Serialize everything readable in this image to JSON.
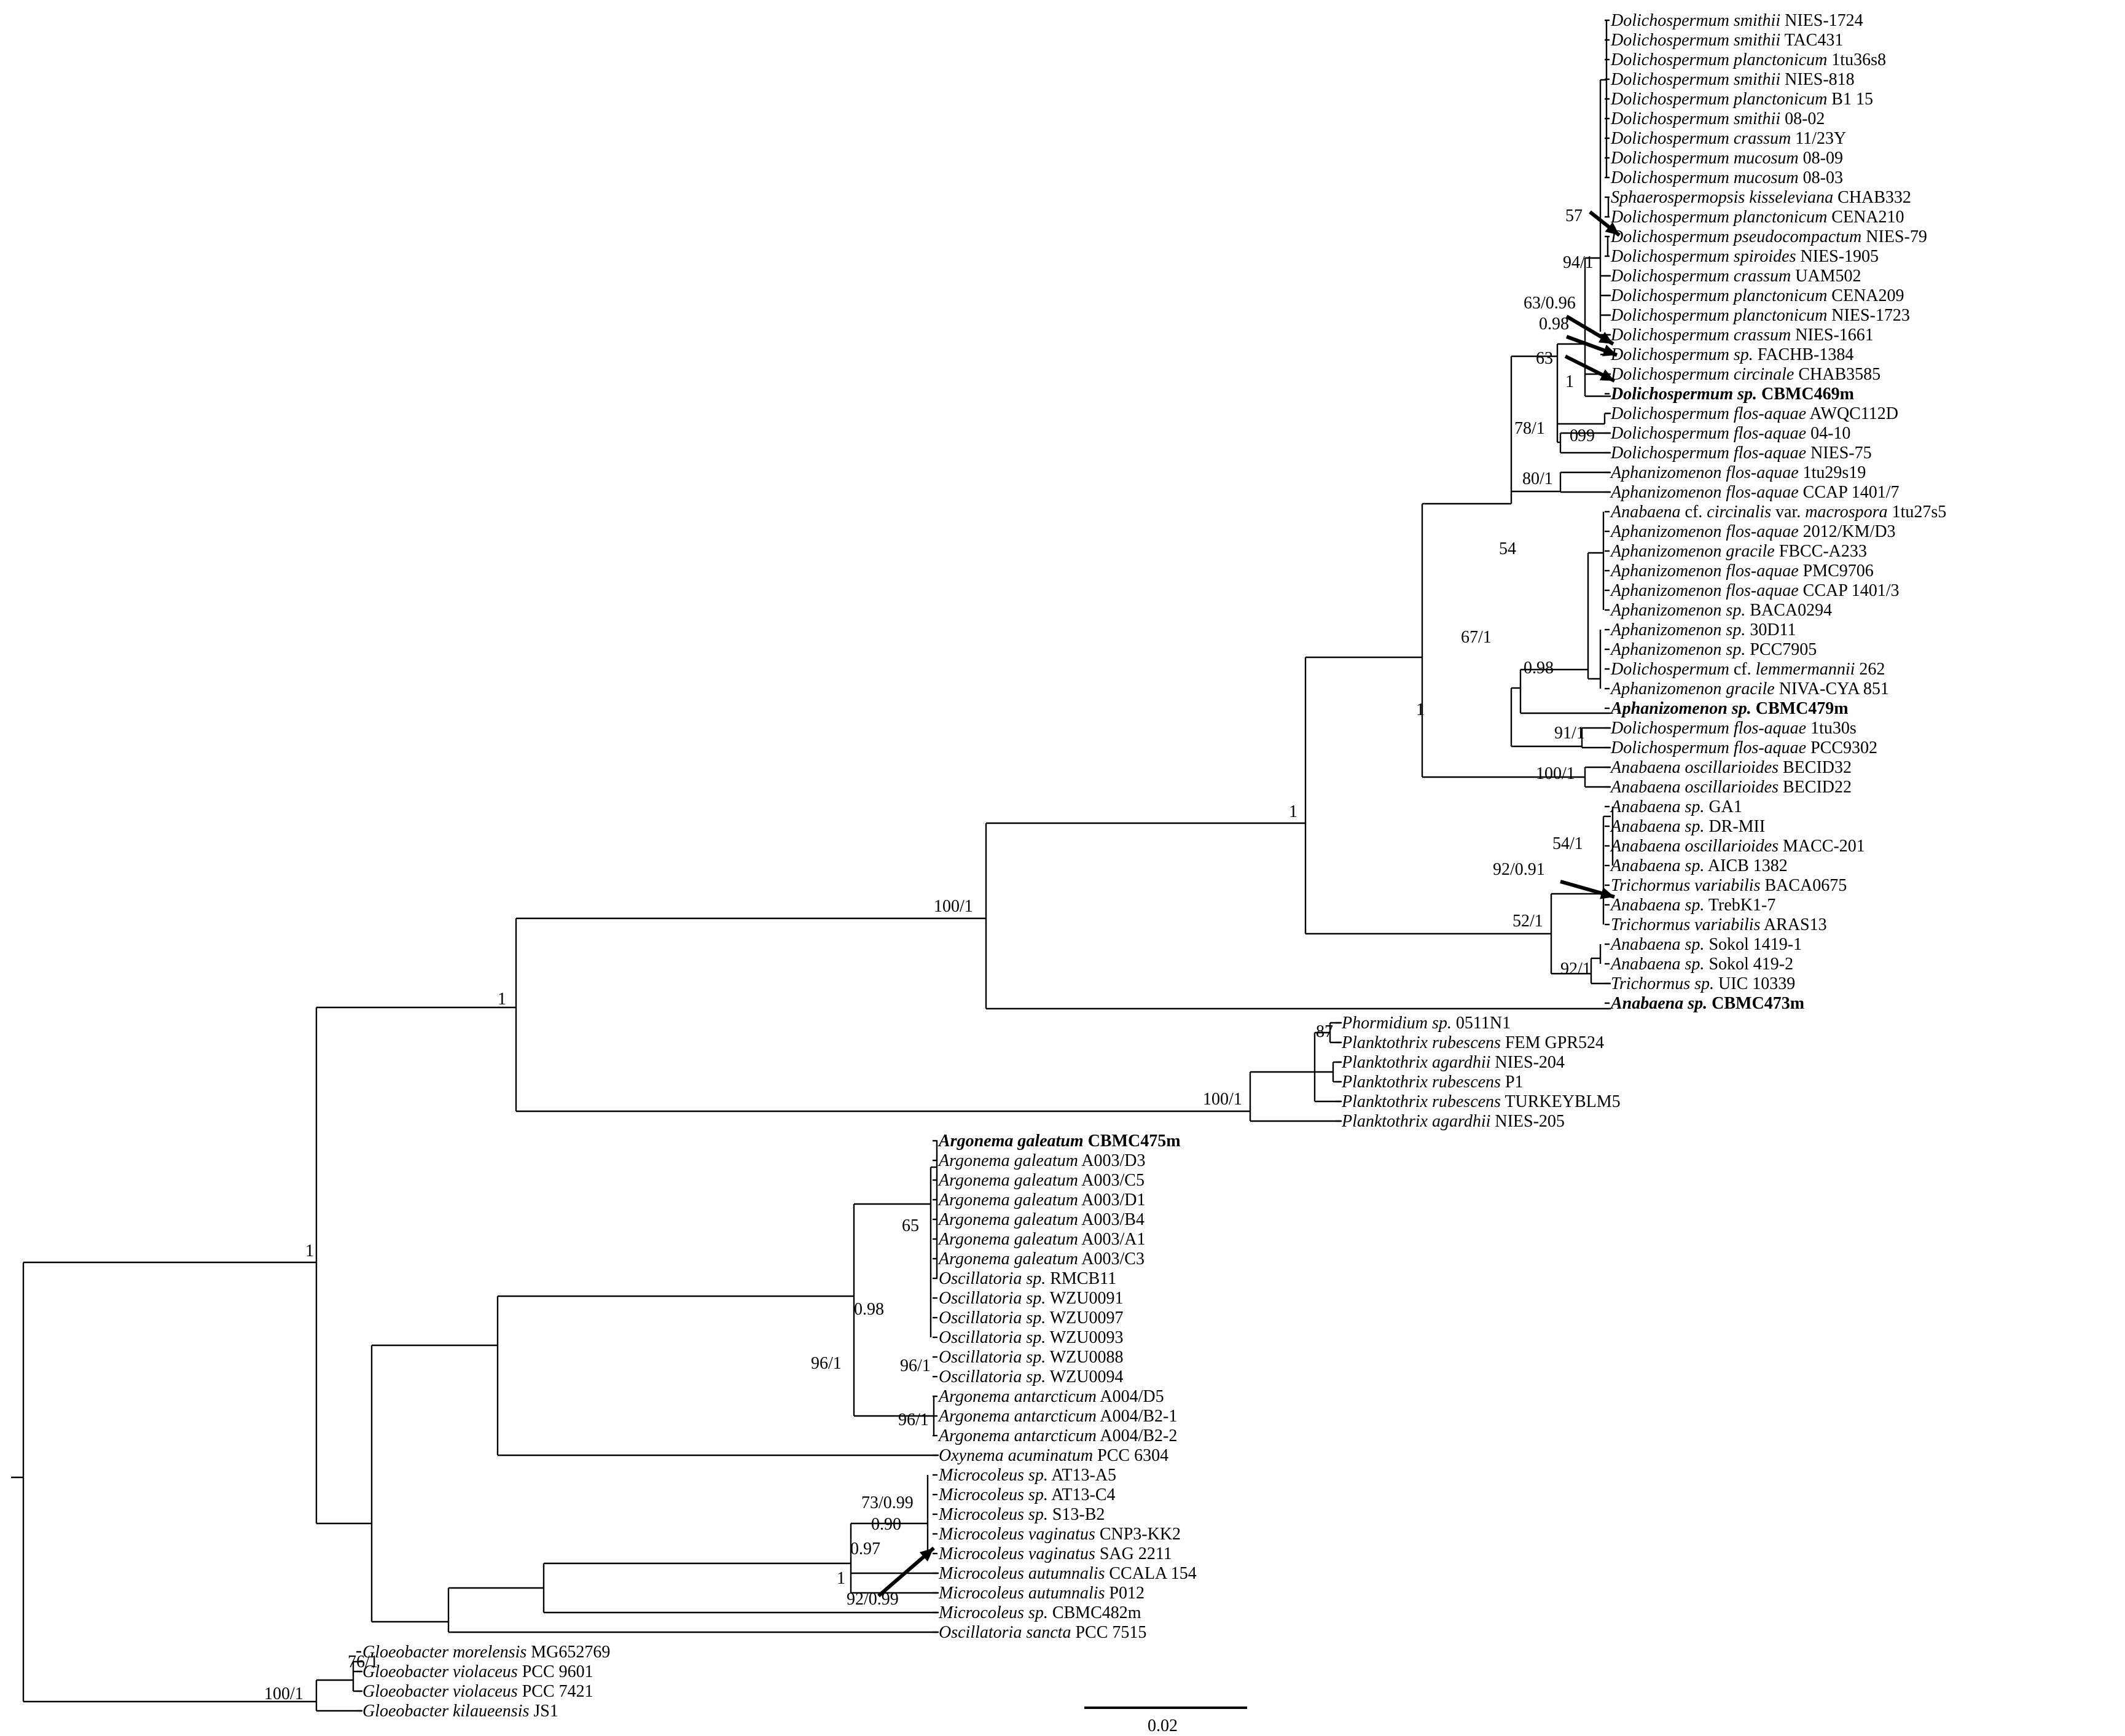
{
  "figure": {
    "scale_bar_label": "0.02"
  },
  "taxa": [
    {
      "id": "t1",
      "genus_species": "Dolichospermum smithii",
      "strain": "NIES-1724"
    },
    {
      "id": "t2",
      "genus_species": "Dolichospermum smithii",
      "strain": "TAC431"
    },
    {
      "id": "t3",
      "genus_species": "Dolichospermum planctonicum",
      "strain": "1tu36s8"
    },
    {
      "id": "t4",
      "genus_species": "Dolichospermum smithii",
      "strain": "NIES-818"
    },
    {
      "id": "t5",
      "genus_species": "Dolichospermum planctonicum",
      "strain": "B1 15"
    },
    {
      "id": "t6",
      "genus_species": "Dolichospermum smithii",
      "strain": "08-02"
    },
    {
      "id": "t7",
      "genus_species": "Dolichospermum crassum",
      "strain": "11/23Y"
    },
    {
      "id": "t8",
      "genus_species": "Dolichospermum mucosum",
      "strain": "08-09"
    },
    {
      "id": "t9",
      "genus_species": "Dolichospermum mucosum",
      "strain": "08-03"
    },
    {
      "id": "t10",
      "genus_species": "Sphaerospermopsis kisseleviana",
      "strain": "CHAB332"
    },
    {
      "id": "t11",
      "genus_species": "Dolichospermum planctonicum",
      "strain": "CENA210"
    },
    {
      "id": "t12",
      "genus_species": "Dolichospermum pseudocompactum",
      "strain": "NIES-79"
    },
    {
      "id": "t13",
      "genus_species": "Dolichospermum spiroides",
      "strain": "NIES-1905"
    },
    {
      "id": "t14",
      "genus_species": "Dolichospermum crassum",
      "strain": "UAM502"
    },
    {
      "id": "t15",
      "genus_species": "Dolichospermum planctonicum",
      "strain": "CENA209"
    },
    {
      "id": "t16",
      "genus_species": "Dolichospermum planctonicum",
      "strain": "NIES-1723"
    },
    {
      "id": "t17",
      "genus_species": "Dolichospermum crassum",
      "strain": "NIES-1661"
    },
    {
      "id": "t18",
      "genus_species": "Dolichospermum sp.",
      "strain": "FACHB-1384"
    },
    {
      "id": "t19",
      "genus_species": "Dolichospermum circinale",
      "strain": "CHAB3585"
    },
    {
      "id": "t20",
      "genus_species": "Dolichospermum sp.",
      "strain": "CBMC469m",
      "highlight": true
    },
    {
      "id": "t21",
      "genus_species": "Dolichospermum flos-aquae",
      "strain": "AWQC112D"
    },
    {
      "id": "t22",
      "genus_species": "Dolichospermum flos-aquae",
      "strain": "04-10"
    },
    {
      "id": "t23",
      "genus_species": "Dolichospermum flos-aquae",
      "strain": "NIES-75"
    },
    {
      "id": "t24",
      "genus_species": "Aphanizomenon flos-aquae",
      "strain": "1tu29s19"
    },
    {
      "id": "t25",
      "genus_species": "Aphanizomenon flos-aquae",
      "strain": "CCAP 1401/7"
    },
    {
      "id": "t26",
      "genus_species": "Anabaena",
      "strain": "cf.",
      "extra_italic": "circinalis",
      "extra_plain": "var.",
      "extra_italic2": "macrospora",
      "extra_strain": "1tu27s5"
    },
    {
      "id": "t27",
      "genus_species": "Aphanizomenon flos-aquae",
      "strain": "2012/KM/D3"
    },
    {
      "id": "t28",
      "genus_species": "Aphanizomenon gracile",
      "strain": "FBCC-A233"
    },
    {
      "id": "t29",
      "genus_species": "Aphanizomenon flos-aquae",
      "strain": "PMC9706"
    },
    {
      "id": "t30",
      "genus_species": "Aphanizomenon flos-aquae",
      "strain": "CCAP 1401/3"
    },
    {
      "id": "t31",
      "genus_species": "Aphanizomenon sp.",
      "strain": "BACA0294"
    },
    {
      "id": "t32",
      "genus_species": "Aphanizomenon sp.",
      "strain": "30D11"
    },
    {
      "id": "t33",
      "genus_species": "Aphanizomenon sp.",
      "strain": "PCC7905"
    },
    {
      "id": "t34",
      "genus_species": "Dolichospermum",
      "strain": "cf.",
      "extra_italic": "lemmermannii",
      "extra_strain": "262"
    },
    {
      "id": "t35",
      "genus_species": "Aphanizomenon gracile",
      "strain": "NIVA-CYA 851"
    },
    {
      "id": "t36",
      "genus_species": "Aphanizomenon sp.",
      "strain": "CBMC479m",
      "highlight": true
    },
    {
      "id": "t37",
      "genus_species": "Dolichospermum flos-aquae",
      "strain": "1tu30s"
    },
    {
      "id": "t38",
      "genus_species": "Dolichospermum flos-aquae",
      "strain": "PCC9302"
    },
    {
      "id": "t39",
      "genus_species": "Anabaena oscillarioides",
      "strain": "BECID32"
    },
    {
      "id": "t40",
      "genus_species": "Anabaena oscillarioides",
      "strain": "BECID22"
    },
    {
      "id": "t41",
      "genus_species": "Anabaena sp.",
      "strain": "GA1"
    },
    {
      "id": "t42",
      "genus_species": "Anabaena sp.",
      "strain": "DR-MII"
    },
    {
      "id": "t43",
      "genus_species": "Anabaena oscillarioides",
      "strain": "MACC-201"
    },
    {
      "id": "t44",
      "genus_species": "Anabaena sp.",
      "strain": "AICB 1382"
    },
    {
      "id": "t45",
      "genus_species": "Trichormus variabilis",
      "strain": "BACA0675"
    },
    {
      "id": "t46",
      "genus_species": "Anabaena sp.",
      "strain": "TrebK1-7"
    },
    {
      "id": "t47",
      "genus_species": "Trichormus variabilis",
      "strain": "ARAS13"
    },
    {
      "id": "t48",
      "genus_species": "Anabaena sp.",
      "strain": "Sokol 1419-1"
    },
    {
      "id": "t49",
      "genus_species": "Anabaena sp.",
      "strain": "Sokol 419-2"
    },
    {
      "id": "t50",
      "genus_species": "Trichormus sp.",
      "strain": "UIC 10339"
    },
    {
      "id": "t51",
      "genus_species": "Anabaena sp.",
      "strain": "CBMC473m",
      "highlight": true
    },
    {
      "id": "t52",
      "genus_species": "Phormidium sp.",
      "strain": "0511N1"
    },
    {
      "id": "t53",
      "genus_species": "Planktothrix rubescens",
      "strain": "FEM GPR524"
    },
    {
      "id": "t54",
      "genus_species": "Planktothrix agardhii",
      "strain": "NIES-204"
    },
    {
      "id": "t55",
      "genus_species": "Planktothrix rubescens",
      "strain": "P1"
    },
    {
      "id": "t56",
      "genus_species": "Planktothrix rubescens",
      "strain": "TURKEYBLM5"
    },
    {
      "id": "t57",
      "genus_species": "Planktothrix agardhii",
      "strain": "NIES-205"
    },
    {
      "id": "t58",
      "genus_species": "Argonema galeatum",
      "strain": "CBMC475m",
      "highlight": true
    },
    {
      "id": "t59",
      "genus_species": "Argonema galeatum",
      "strain": "A003/D3"
    },
    {
      "id": "t60",
      "genus_species": "Argonema galeatum",
      "strain": "A003/C5"
    },
    {
      "id": "t61",
      "genus_species": "Argonema galeatum",
      "strain": "A003/D1"
    },
    {
      "id": "t62",
      "genus_species": "Argonema galeatum",
      "strain": "A003/B4"
    },
    {
      "id": "t63",
      "genus_species": "Argonema galeatum",
      "strain": "A003/A1"
    },
    {
      "id": "t64",
      "genus_species": "Argonema galeatum",
      "strain": "A003/C3"
    },
    {
      "id": "t65",
      "genus_species": "Oscillatoria sp.",
      "strain": "RMCB11"
    },
    {
      "id": "t66",
      "genus_species": "Oscillatoria sp.",
      "strain": "WZU0091"
    },
    {
      "id": "t67",
      "genus_species": "Oscillatoria sp.",
      "strain": "WZU0097"
    },
    {
      "id": "t68",
      "genus_species": "Oscillatoria sp.",
      "strain": "WZU0093"
    },
    {
      "id": "t69",
      "genus_species": "Oscillatoria sp.",
      "strain": "WZU0088"
    },
    {
      "id": "t70",
      "genus_species": "Oscillatoria sp.",
      "strain": "WZU0094"
    },
    {
      "id": "t71",
      "genus_species": "Argonema antarcticum",
      "strain": "A004/D5"
    },
    {
      "id": "t72",
      "genus_species": "Argonema antarcticum",
      "strain": "A004/B2-1"
    },
    {
      "id": "t73",
      "genus_species": "Argonema antarcticum",
      "strain": "A004/B2-2"
    },
    {
      "id": "t74",
      "genus_species": "Oxynema acuminatum",
      "strain": "PCC 6304"
    },
    {
      "id": "t75",
      "genus_species": "Microcoleus sp.",
      "strain": "AT13-A5"
    },
    {
      "id": "t76",
      "genus_species": "Microcoleus sp.",
      "strain": "AT13-C4"
    },
    {
      "id": "t77",
      "genus_species": "Microcoleus sp.",
      "strain": "S13-B2"
    },
    {
      "id": "t78",
      "genus_species": "Microcoleus vaginatus",
      "strain": "CNP3-KK2"
    },
    {
      "id": "t79",
      "genus_species": "Microcoleus vaginatus",
      "strain": "SAG 2211"
    },
    {
      "id": "t80",
      "genus_species": "Microcoleus autumnalis",
      "strain": "CCALA 154"
    },
    {
      "id": "t81",
      "genus_species": "Microcoleus autumnalis",
      "strain": "P012"
    },
    {
      "id": "t82",
      "genus_species": "Microcoleus sp.",
      "strain": "CBMC482m"
    },
    {
      "id": "t83",
      "genus_species": "Oscillatoria sancta",
      "strain": "PCC 7515"
    },
    {
      "id": "t84",
      "genus_species": "Gloeobacter morelensis",
      "strain": "MG652769"
    },
    {
      "id": "t85",
      "genus_species": "Gloeobacter violaceus",
      "strain": "PCC 9601"
    },
    {
      "id": "t86",
      "genus_species": "Gloeobacter violaceus",
      "strain": "PCC 7421"
    },
    {
      "id": "t87",
      "genus_species": "Gloeobacter kilaueensis",
      "strain": "JS1"
    }
  ],
  "support_labels": [
    {
      "id": "s57",
      "text": "57"
    },
    {
      "id": "s94",
      "text": "94/1"
    },
    {
      "id": "s63096",
      "text": "63/0.96"
    },
    {
      "id": "s098a",
      "text": "0.98"
    },
    {
      "id": "s63",
      "text": "63"
    },
    {
      "id": "s1a",
      "text": "1"
    },
    {
      "id": "s0",
      "text": "0"
    },
    {
      "id": "s99",
      "text": "99"
    },
    {
      "id": "s78",
      "text": "78/1"
    },
    {
      "id": "s80",
      "text": "80/1"
    },
    {
      "id": "s54",
      "text": "54"
    },
    {
      "id": "s67",
      "text": "67/1"
    },
    {
      "id": "s098b",
      "text": "0.98"
    },
    {
      "id": "s1b",
      "text": "1"
    },
    {
      "id": "s91",
      "text": "91/1"
    },
    {
      "id": "s100a",
      "text": "100/1"
    },
    {
      "id": "s1c",
      "text": "1"
    },
    {
      "id": "s54b",
      "text": "54/1"
    },
    {
      "id": "s92091",
      "text": "92/0.91"
    },
    {
      "id": "s52",
      "text": "52/1"
    },
    {
      "id": "s92",
      "text": "92/1"
    },
    {
      "id": "s100b",
      "text": "100/1"
    },
    {
      "id": "s1d",
      "text": "1"
    },
    {
      "id": "s87",
      "text": "87"
    },
    {
      "id": "s100c",
      "text": "100/1"
    },
    {
      "id": "s65",
      "text": "65"
    },
    {
      "id": "s098c",
      "text": "0.98"
    },
    {
      "id": "s96a",
      "text": "96/1"
    },
    {
      "id": "s96b",
      "text": "96/1"
    },
    {
      "id": "s96c",
      "text": "96/1"
    },
    {
      "id": "s1e",
      "text": "1"
    },
    {
      "id": "s73",
      "text": "73/0.99"
    },
    {
      "id": "s090",
      "text": "0.90"
    },
    {
      "id": "s097",
      "text": "0.97"
    },
    {
      "id": "s1f",
      "text": "1"
    },
    {
      "id": "s92099",
      "text": "92/0.99"
    },
    {
      "id": "s76",
      "text": "76/1"
    },
    {
      "id": "s100d",
      "text": "100/1"
    }
  ]
}
